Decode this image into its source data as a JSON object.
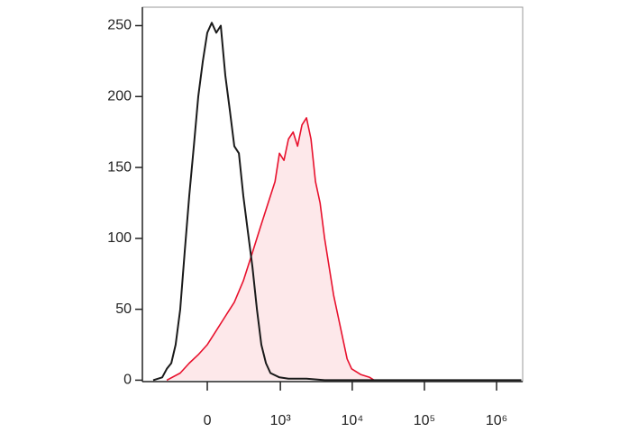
{
  "chart_data": {
    "type": "histogram-overlay",
    "xscale": "asinh",
    "xlim": [
      -765,
      2300000
    ],
    "xticks": [
      0,
      {
        "value": 1000,
        "label": "10³"
      },
      {
        "value": 10000,
        "label": "10⁴"
      },
      {
        "value": 100000,
        "label": "10⁵"
      },
      {
        "value": 1000000,
        "label": "10⁶"
      }
    ],
    "ylim": [
      -1,
      263
    ],
    "yticks": [
      0,
      50,
      100,
      150,
      200,
      250
    ],
    "series": [
      {
        "color": "#e8112d",
        "fill": "#fde8ea",
        "x": [
          -330,
          -191,
          -119,
          -57,
          0,
          57,
          119,
          191,
          278,
          390,
          533,
          722,
          839,
          970,
          1123,
          1299,
          1509,
          1741,
          2008,
          2320,
          2681,
          3097,
          3579,
          4135,
          4778,
          5510,
          6368,
          7350,
          8487,
          9800,
          13073,
          17424,
          20130
        ],
        "values": [
          0,
          5,
          12,
          18,
          25,
          35,
          45,
          55,
          70,
          90,
          110,
          130,
          140,
          160,
          155,
          170,
          175,
          165,
          180,
          185,
          170,
          140,
          125,
          100,
          80,
          60,
          45,
          30,
          15,
          8,
          4,
          2,
          0
        ]
      },
      {
        "color": "#1a1a1a",
        "fill": null,
        "x": [
          -533,
          -390,
          -330,
          -278,
          -233,
          -191,
          -154,
          -119,
          -87,
          -57,
          -28,
          0,
          28,
          57,
          87,
          119,
          154,
          191,
          233,
          278,
          330,
          390,
          457,
          533,
          621,
          722,
          970,
          1299,
          2320,
          4135,
          2200000
        ],
        "values": [
          0,
          2,
          8,
          12,
          25,
          50,
          90,
          130,
          165,
          200,
          225,
          245,
          252,
          245,
          250,
          215,
          190,
          165,
          160,
          130,
          105,
          80,
          50,
          25,
          12,
          5,
          2,
          1,
          1,
          0,
          0
        ]
      }
    ]
  }
}
